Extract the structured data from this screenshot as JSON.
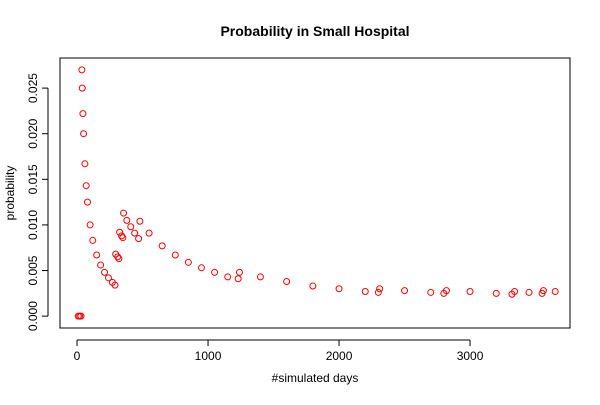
{
  "chart_data": {
    "type": "scatter",
    "title": "Probability in Small Hospital",
    "x_label": "#simulated days",
    "y_label": "probability",
    "color": "#ff0000",
    "x": [
      10,
      20,
      30,
      37,
      40,
      45,
      50,
      60,
      70,
      80,
      100,
      120,
      150,
      180,
      210,
      240,
      270,
      290,
      295,
      310,
      320,
      325,
      340,
      350,
      355,
      380,
      410,
      440,
      470,
      480,
      550,
      650,
      750,
      850,
      950,
      1050,
      1150,
      1230,
      1240,
      1400,
      1600,
      1800,
      2000,
      2200,
      2300,
      2310,
      2500,
      2700,
      2800,
      2820,
      3000,
      3200,
      3320,
      3340,
      3450,
      3550,
      3560,
      3650
    ],
    "values": [
      0,
      0,
      0,
      0.027,
      0.025,
      0.0222,
      0.02,
      0.0167,
      0.0143,
      0.0125,
      0.01,
      0.0083,
      0.0067,
      0.0056,
      0.0048,
      0.0042,
      0.0037,
      0.0034,
      0.0068,
      0.0065,
      0.0063,
      0.0092,
      0.0088,
      0.0086,
      0.0113,
      0.0105,
      0.0098,
      0.0091,
      0.0085,
      0.0104,
      0.0091,
      0.0077,
      0.0067,
      0.0059,
      0.0053,
      0.0048,
      0.0043,
      0.0041,
      0.0048,
      0.0043,
      0.0038,
      0.0033,
      0.003,
      0.0027,
      0.0026,
      0.003,
      0.0028,
      0.0026,
      0.0025,
      0.0028,
      0.0027,
      0.0025,
      0.0024,
      0.0027,
      0.0026,
      0.0025,
      0.0028,
      0.0027
    ],
    "xlim": [
      -130,
      3763
    ],
    "ylim": [
      -0.0013,
      0.0283
    ],
    "xticks": [
      0,
      1000,
      2000,
      3000
    ],
    "yticks": [
      {
        "value": 0,
        "label": "0.000"
      },
      {
        "value": 0.005,
        "label": "0.005"
      },
      {
        "value": 0.01,
        "label": "0.010"
      },
      {
        "value": 0.015,
        "label": "0.015"
      },
      {
        "value": 0.02,
        "label": "0.020"
      },
      {
        "value": 0.025,
        "label": "0.025"
      }
    ]
  }
}
